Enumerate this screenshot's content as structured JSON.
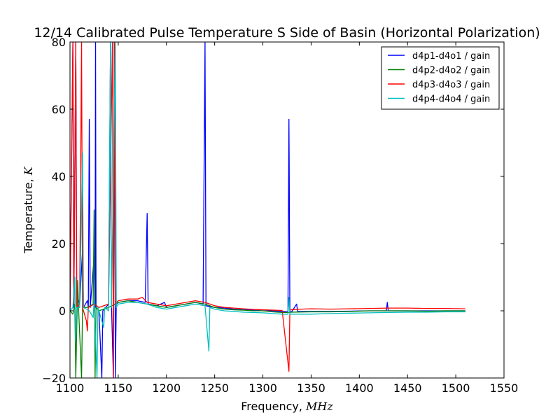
{
  "chart_data": {
    "type": "line",
    "title": "12/14 Calibrated Pulse Temperature  S Side of Basin (Horizontal Polarization)",
    "xlabel": "Frequency, ",
    "xlabel_unit": "MHz",
    "ylabel": "Temperature, ",
    "ylabel_unit": "K",
    "xlim": [
      1100,
      1550
    ],
    "ylim": [
      -20,
      80
    ],
    "xticks": [
      1100,
      1150,
      1200,
      1250,
      1300,
      1350,
      1400,
      1450,
      1500,
      1550
    ],
    "yticks": [
      -20,
      0,
      20,
      40,
      60,
      80
    ],
    "grid": false,
    "legend_position": "top-right",
    "series": [
      {
        "name": "d4p1-d4o1 / gain",
        "color": "#0000ff",
        "points": [
          [
            1100,
            0
          ],
          [
            1103,
            80
          ],
          [
            1104,
            1
          ],
          [
            1106,
            80
          ],
          [
            1107,
            5
          ],
          [
            1110,
            2
          ],
          [
            1113,
            18
          ],
          [
            1114,
            1
          ],
          [
            1118,
            3
          ],
          [
            1119,
            1
          ],
          [
            1120,
            57
          ],
          [
            1121,
            1
          ],
          [
            1125,
            16
          ],
          [
            1126,
            1
          ],
          [
            1126.5,
            80
          ],
          [
            1127,
            1
          ],
          [
            1130,
            0
          ],
          [
            1133,
            -20
          ],
          [
            1134,
            0
          ],
          [
            1140,
            2
          ],
          [
            1142,
            80
          ],
          [
            1143,
            2
          ],
          [
            1145,
            -20
          ],
          [
            1146,
            80
          ],
          [
            1147,
            -20
          ],
          [
            1148,
            2
          ],
          [
            1150,
            2.5
          ],
          [
            1160,
            3
          ],
          [
            1170,
            3
          ],
          [
            1178,
            2.5
          ],
          [
            1180,
            29
          ],
          [
            1181,
            2
          ],
          [
            1190,
            1.5
          ],
          [
            1198,
            2.5
          ],
          [
            1200,
            1
          ],
          [
            1210,
            1.5
          ],
          [
            1220,
            2
          ],
          [
            1230,
            2.5
          ],
          [
            1238,
            2
          ],
          [
            1240,
            80
          ],
          [
            1241,
            1.5
          ],
          [
            1250,
            1
          ],
          [
            1260,
            0.8
          ],
          [
            1270,
            0.5
          ],
          [
            1280,
            0.3
          ],
          [
            1290,
            0.2
          ],
          [
            1300,
            0
          ],
          [
            1310,
            0
          ],
          [
            1320,
            -0.2
          ],
          [
            1326,
            -0.3
          ],
          [
            1327,
            57
          ],
          [
            1327.3,
            43
          ],
          [
            1327.6,
            21
          ],
          [
            1328,
            -0.3
          ],
          [
            1330,
            -0.2
          ],
          [
            1335,
            2
          ],
          [
            1336,
            -0.2
          ],
          [
            1350,
            -0.2
          ],
          [
            1370,
            -0.2
          ],
          [
            1390,
            -0.1
          ],
          [
            1410,
            0
          ],
          [
            1428,
            0
          ],
          [
            1429,
            2.5
          ],
          [
            1430,
            0
          ],
          [
            1450,
            0
          ],
          [
            1470,
            0
          ],
          [
            1490,
            0
          ],
          [
            1510,
            0
          ]
        ]
      },
      {
        "name": "d4p2-d4o2 / gain",
        "color": "#008000",
        "points": [
          [
            1100,
            0
          ],
          [
            1103,
            -1
          ],
          [
            1105,
            2
          ],
          [
            1106,
            -20
          ],
          [
            1108,
            9
          ],
          [
            1109,
            0
          ],
          [
            1112,
            -20
          ],
          [
            1113,
            1
          ],
          [
            1118,
            1
          ],
          [
            1124,
            2
          ],
          [
            1125,
            30
          ],
          [
            1126,
            -20
          ],
          [
            1127,
            1
          ],
          [
            1130,
            0
          ],
          [
            1140,
            1
          ],
          [
            1150,
            2.5
          ],
          [
            1160,
            3
          ],
          [
            1170,
            2.5
          ],
          [
            1180,
            2
          ],
          [
            1190,
            1.5
          ],
          [
            1200,
            1
          ],
          [
            1210,
            1.5
          ],
          [
            1220,
            2
          ],
          [
            1230,
            2.5
          ],
          [
            1240,
            2
          ],
          [
            1250,
            1
          ],
          [
            1260,
            0.5
          ],
          [
            1270,
            0.3
          ],
          [
            1280,
            0.2
          ],
          [
            1290,
            0
          ],
          [
            1300,
            0
          ],
          [
            1310,
            -0.3
          ],
          [
            1320,
            -0.5
          ],
          [
            1327,
            -0.5
          ],
          [
            1330,
            -0.4
          ],
          [
            1350,
            -0.3
          ],
          [
            1370,
            -0.3
          ],
          [
            1390,
            -0.2
          ],
          [
            1410,
            0
          ],
          [
            1430,
            0
          ],
          [
            1450,
            0
          ],
          [
            1470,
            -0.1
          ],
          [
            1490,
            0
          ],
          [
            1510,
            0
          ]
        ]
      },
      {
        "name": "d4p3-d4o3 / gain",
        "color": "#ff0000",
        "points": [
          [
            1100,
            1
          ],
          [
            1103,
            80
          ],
          [
            1104,
            2
          ],
          [
            1106,
            80
          ],
          [
            1107,
            1
          ],
          [
            1110,
            2
          ],
          [
            1112,
            80
          ],
          [
            1113,
            1
          ],
          [
            1117,
            -3
          ],
          [
            1118,
            -6
          ],
          [
            1119,
            1
          ],
          [
            1125,
            2
          ],
          [
            1130,
            1
          ],
          [
            1140,
            2
          ],
          [
            1144,
            80
          ],
          [
            1145,
            -20
          ],
          [
            1146,
            80
          ],
          [
            1147,
            2
          ],
          [
            1150,
            3
          ],
          [
            1160,
            3.5
          ],
          [
            1170,
            3.5
          ],
          [
            1175,
            4
          ],
          [
            1180,
            2.5
          ],
          [
            1190,
            2
          ],
          [
            1200,
            1.5
          ],
          [
            1210,
            2
          ],
          [
            1220,
            2.5
          ],
          [
            1230,
            3
          ],
          [
            1240,
            2.5
          ],
          [
            1250,
            1.5
          ],
          [
            1260,
            1
          ],
          [
            1270,
            0.8
          ],
          [
            1280,
            0.6
          ],
          [
            1290,
            0.4
          ],
          [
            1300,
            0.3
          ],
          [
            1310,
            0.2
          ],
          [
            1320,
            0.1
          ],
          [
            1327,
            -18
          ],
          [
            1328,
            0.3
          ],
          [
            1340,
            0.5
          ],
          [
            1350,
            0.6
          ],
          [
            1370,
            0.5
          ],
          [
            1390,
            0.6
          ],
          [
            1410,
            0.7
          ],
          [
            1430,
            0.8
          ],
          [
            1450,
            0.8
          ],
          [
            1470,
            0.7
          ],
          [
            1490,
            0.7
          ],
          [
            1510,
            0.6
          ]
        ]
      },
      {
        "name": "d4p4-d4o4 / gain",
        "color": "#00bfbf",
        "points": [
          [
            1100,
            0
          ],
          [
            1103,
            1
          ],
          [
            1105,
            10
          ],
          [
            1106,
            -9
          ],
          [
            1107,
            1
          ],
          [
            1110,
            1
          ],
          [
            1113,
            47
          ],
          [
            1114,
            1
          ],
          [
            1120,
            0
          ],
          [
            1124,
            -2
          ],
          [
            1125,
            3
          ],
          [
            1128,
            -20
          ],
          [
            1129,
            1
          ],
          [
            1135,
            -5
          ],
          [
            1136,
            1
          ],
          [
            1140,
            0
          ],
          [
            1142,
            80
          ],
          [
            1143,
            1
          ],
          [
            1147,
            80
          ],
          [
            1148,
            1
          ],
          [
            1150,
            2
          ],
          [
            1160,
            2.5
          ],
          [
            1170,
            2.5
          ],
          [
            1180,
            2
          ],
          [
            1190,
            1
          ],
          [
            1200,
            0.5
          ],
          [
            1210,
            1
          ],
          [
            1220,
            1.5
          ],
          [
            1230,
            2
          ],
          [
            1240,
            1.5
          ],
          [
            1244,
            -12
          ],
          [
            1245,
            1
          ],
          [
            1250,
            0.5
          ],
          [
            1260,
            0
          ],
          [
            1270,
            -0.2
          ],
          [
            1280,
            -0.4
          ],
          [
            1290,
            -0.5
          ],
          [
            1300,
            -0.6
          ],
          [
            1310,
            -0.8
          ],
          [
            1320,
            -1
          ],
          [
            1326,
            -1
          ],
          [
            1327,
            4
          ],
          [
            1328,
            -1
          ],
          [
            1330,
            -1
          ],
          [
            1350,
            -1
          ],
          [
            1370,
            -0.8
          ],
          [
            1390,
            -0.7
          ],
          [
            1410,
            -0.6
          ],
          [
            1430,
            -0.5
          ],
          [
            1450,
            -0.4
          ],
          [
            1470,
            -0.4
          ],
          [
            1490,
            -0.3
          ],
          [
            1510,
            -0.3
          ]
        ]
      }
    ]
  }
}
